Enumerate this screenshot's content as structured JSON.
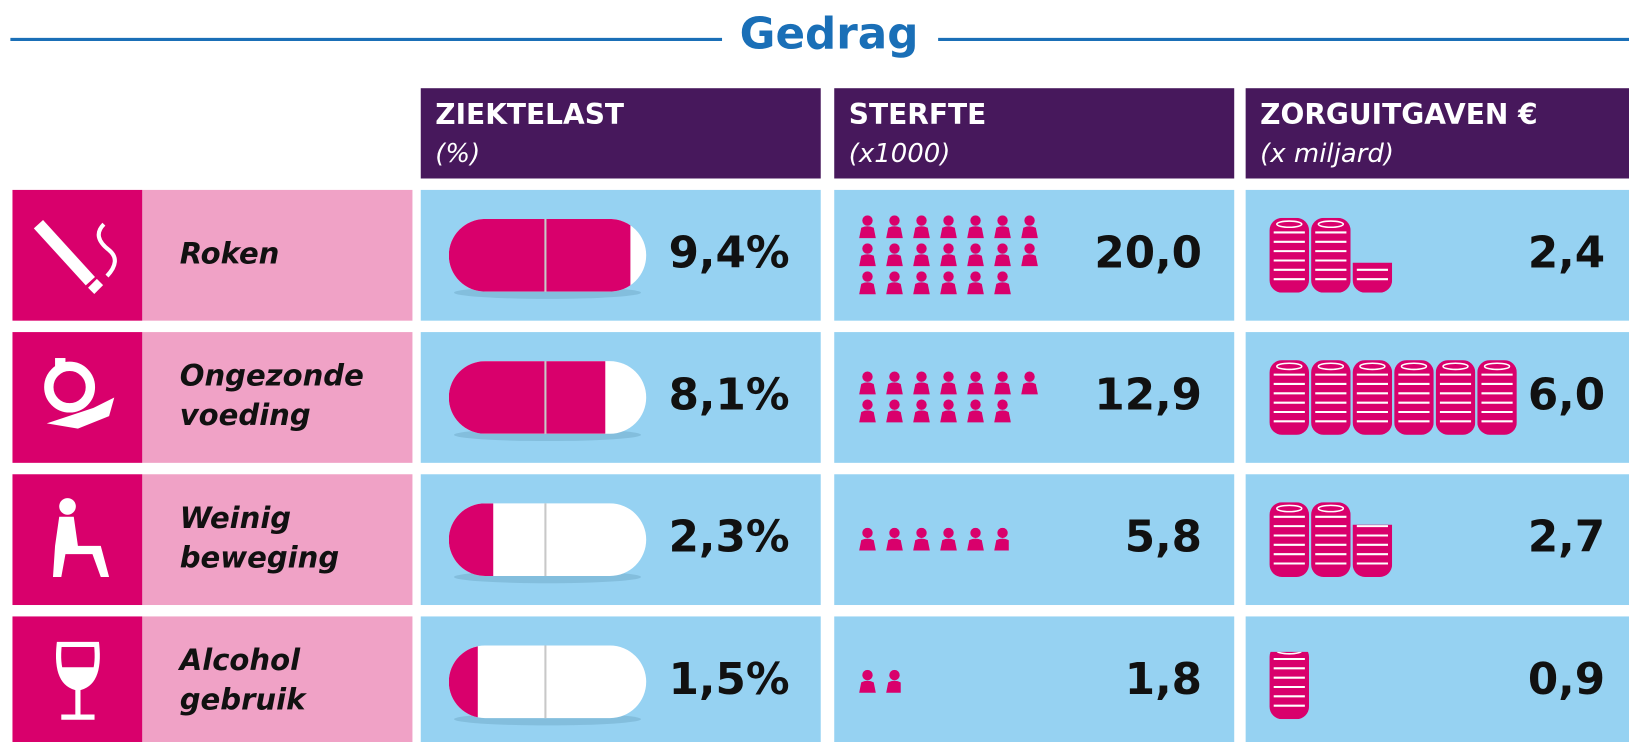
{
  "title": "Gedrag",
  "columns": [
    {
      "name": "ZIEKTELAST",
      "unit": "(%)"
    },
    {
      "name": "STERFTE",
      "unit": "(x1000)"
    },
    {
      "name": "ZORGUITGAVEN €",
      "unit": "(x miljard)"
    }
  ],
  "rows": [
    {
      "label": [
        "Roken"
      ],
      "ziektelast": {
        "value": 9.4,
        "label": "9,4%"
      },
      "sterfte": {
        "value": 20.0,
        "label": "20,0"
      },
      "zorguitgaven": {
        "value": 2.4,
        "label": "2,4"
      }
    },
    {
      "label": [
        "Ongezonde",
        "voeding"
      ],
      "ziektelast": {
        "value": 8.1,
        "label": "8,1%"
      },
      "sterfte": {
        "value": 12.9,
        "label": "12,9"
      },
      "zorguitgaven": {
        "value": 6.0,
        "label": "6,0"
      }
    },
    {
      "label": [
        "Weinig",
        "beweging"
      ],
      "ziektelast": {
        "value": 2.3,
        "label": "2,3%"
      },
      "sterfte": {
        "value": 5.8,
        "label": "5,8"
      },
      "zorguitgaven": {
        "value": 2.7,
        "label": "2,7"
      }
    },
    {
      "label": [
        "Alcohol",
        "gebruik"
      ],
      "ziektelast": {
        "value": 1.5,
        "label": "1,5%"
      },
      "sterfte": {
        "value": 1.8,
        "label": "1,8"
      },
      "zorguitgaven": {
        "value": 0.9,
        "label": "0,9"
      }
    }
  ]
}
